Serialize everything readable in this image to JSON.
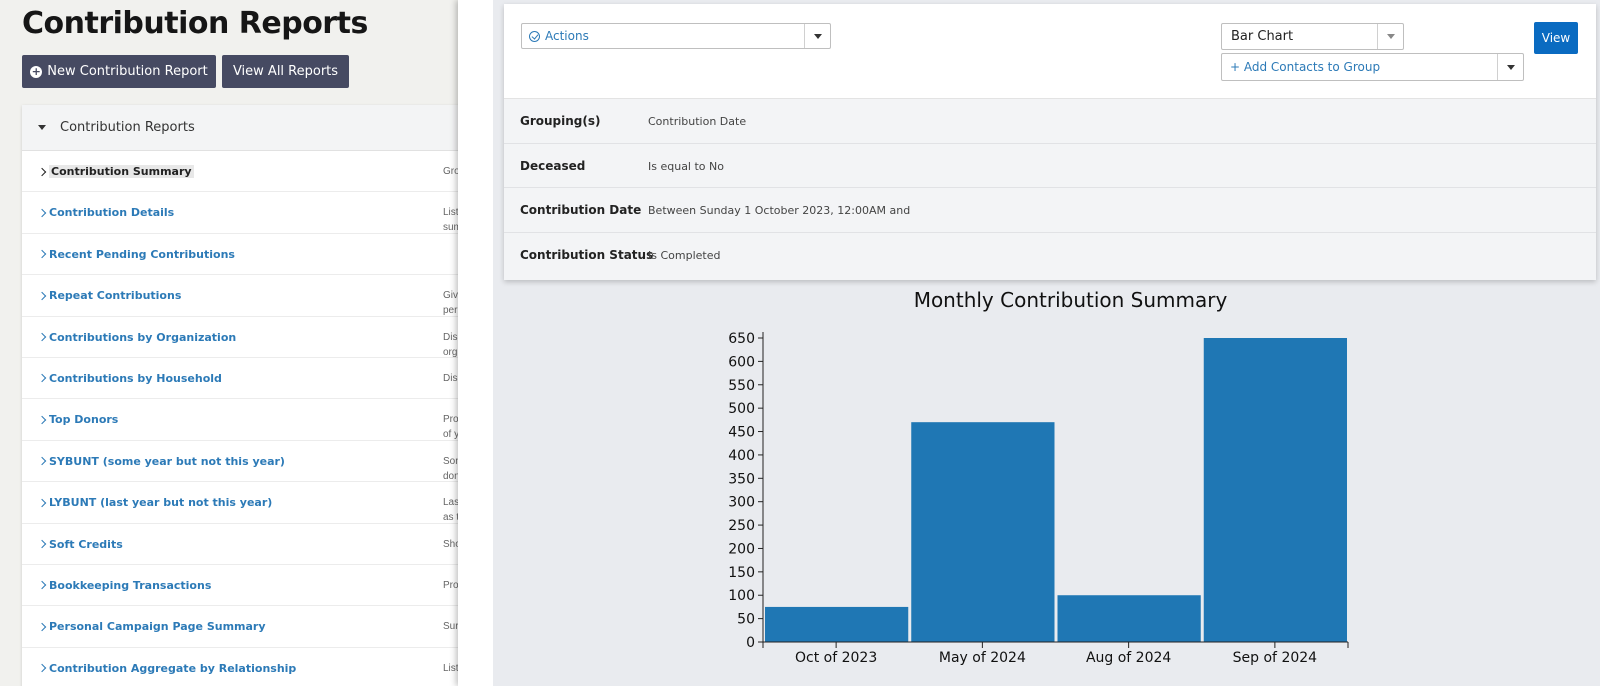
{
  "page": {
    "title": "Contribution Reports",
    "new_report_label": "New Contribution Report",
    "view_all_label": "View All Reports"
  },
  "reports_panel": {
    "header": "Contribution Reports",
    "items": [
      {
        "label": "Contribution Summary",
        "desc": "Gro",
        "active": true
      },
      {
        "label": "Contribution Details",
        "desc": "List\nsum"
      },
      {
        "label": "Recent Pending Contributions",
        "desc": ""
      },
      {
        "label": "Repeat Contributions",
        "desc": "Give\nper"
      },
      {
        "label": "Contributions by Organization",
        "desc": "Disp\norg"
      },
      {
        "label": "Contributions by Household",
        "desc": "Disp"
      },
      {
        "label": "Top Donors",
        "desc": "Pro\nof y"
      },
      {
        "label": "SYBUNT (some year but not this year)",
        "desc": "Son\ndon"
      },
      {
        "label": "LYBUNT (last year but not this year)",
        "desc": "Las\nas t"
      },
      {
        "label": "Soft Credits",
        "desc": "Sho"
      },
      {
        "label": "Bookkeeping Transactions",
        "desc": "Pro"
      },
      {
        "label": "Personal Campaign Page Summary",
        "desc": "Sur"
      },
      {
        "label": "Contribution Aggregate by Relationship",
        "desc": "List"
      }
    ]
  },
  "toolbar": {
    "actions_label": "Actions",
    "chart_type_value": "Bar Chart",
    "add_group_label": "+ Add Contacts to Group",
    "view_label": "View"
  },
  "criteria": [
    {
      "label": "Grouping(s)",
      "value": "Contribution Date"
    },
    {
      "label": "Deceased",
      "value": "Is equal to No"
    },
    {
      "label": "Contribution Date",
      "value": "Between Sunday 1 October 2023, 12:00AM and"
    },
    {
      "label": "Contribution Status",
      "value": "Is Completed"
    }
  ],
  "chart_data": {
    "type": "bar",
    "title": "Monthly Contribution Summary",
    "categories": [
      "Oct of 2023",
      "May of 2024",
      "Aug of 2024",
      "Sep of 2024"
    ],
    "values": [
      75,
      470,
      100,
      650
    ],
    "ylim": [
      0,
      650
    ],
    "yticks": [
      0,
      50,
      100,
      150,
      200,
      250,
      300,
      350,
      400,
      450,
      500,
      550,
      600,
      650
    ],
    "xlabel": "",
    "ylabel": "",
    "color": "#1f77b4",
    "grid": false
  },
  "colors": {
    "link": "#2c7ab7",
    "dark_button": "#464a62",
    "primary_button": "#0a6bc1"
  }
}
